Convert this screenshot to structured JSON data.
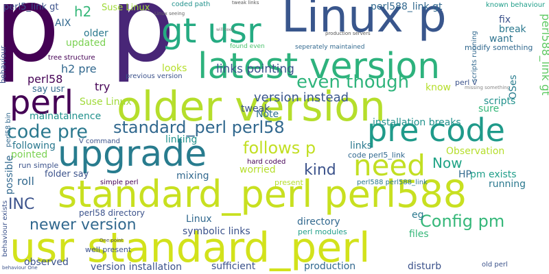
{
  "words": [
    "p",
    "p",
    "Linux p",
    "gt usr",
    "latest version",
    "older version",
    "perl",
    "pre code",
    "upgrade",
    "need",
    "standard_perl perl588",
    "usr standard_perl",
    "code pre",
    "standard_perl perl58",
    "even though",
    "links pointing",
    "perl5_link gt",
    "h2",
    "Suse Linux",
    "AIX",
    "older",
    "updated",
    "coded path",
    "Linux seeing",
    "tweak links",
    "perl588_link gt",
    "known behaviour",
    "fix",
    "break",
    "want",
    "modify something",
    "perl588_link gt",
    "production servers",
    "seperately maintained",
    "found even",
    "will keep",
    "h2 pre",
    "tree structure",
    "previous version",
    "looks",
    "behaviour",
    "perl58",
    "say usr",
    "try",
    "version instead",
    "know",
    "perl V",
    "missing something",
    "OSes",
    "scripts running",
    "scripts",
    "sure",
    "Note",
    "tweak",
    "mainatainence",
    "perl58 bin",
    "Suse Linux",
    "installation breaks",
    "follows p",
    "V command",
    "linking",
    "following",
    "pointed",
    "run simple",
    "possible",
    "folder say",
    "roll",
    "kind",
    "links",
    "code perl5_link",
    "Observation",
    "Now",
    "HP",
    "pm exists",
    "hard coded",
    "worried",
    "simple perl",
    "mixing",
    "present",
    "perl588 perl588_link",
    "running",
    "INC",
    "newer version",
    "perl58 directory",
    "Config pm",
    "Linux",
    "symbolic links",
    "directory",
    "eg",
    "perl modules",
    "files",
    "behaviour exists",
    "well present",
    "One point",
    "observed",
    "version installation",
    "sufficient",
    "production",
    "disturb",
    "old perl",
    "behaviour One"
  ]
}
